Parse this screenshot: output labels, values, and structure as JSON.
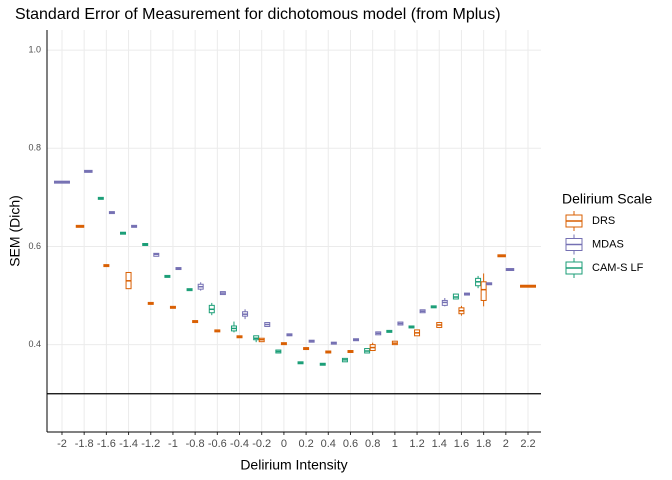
{
  "chart_data": {
    "type": "boxplot",
    "title": "Standard Error of Measurement for dichotomous model (from Mplus)",
    "x_label": "Delirium Intensity",
    "y_label": "SEM (Dich)",
    "legend_title": "Delirium Scale",
    "legend": "right",
    "grid": true,
    "xlim": [
      -2.135,
      2.317
    ],
    "ylim": [
      0.222,
      1.041
    ],
    "xticks": [
      -2,
      -1.8,
      -1.6,
      -1.4,
      -1.2,
      -1,
      -0.8,
      -0.6,
      -0.4,
      -0.2,
      0,
      0.2,
      0.4,
      0.6,
      0.8,
      1,
      1.2,
      1.4,
      1.6,
      1.8,
      2,
      2.2
    ],
    "yticks": [
      0.4,
      0.6,
      0.8,
      {
        "value": 1,
        "label": "1.0"
      }
    ],
    "hline": 0.3,
    "series": [
      {
        "name": "DRS",
        "color": "#d95f02",
        "boxes": [
          {
            "x": -1.8,
            "lo": 0.639,
            "q1": 0.639,
            "med": 0.641,
            "q3": 0.643,
            "hi": 0.643
          },
          {
            "x": -1.6,
            "lo": 0.559,
            "q1": 0.559,
            "med": 0.561,
            "q3": 0.563,
            "hi": 0.563
          },
          {
            "x": -1.4,
            "lo": 0.514,
            "q1": 0.514,
            "med": 0.53,
            "q3": 0.547,
            "hi": 0.547
          },
          {
            "x": -1.2,
            "lo": 0.482,
            "q1": 0.482,
            "med": 0.484,
            "q3": 0.486,
            "hi": 0.486
          },
          {
            "x": -1,
            "lo": 0.474,
            "q1": 0.474,
            "med": 0.476,
            "q3": 0.478,
            "hi": 0.478
          },
          {
            "x": -0.8,
            "lo": 0.445,
            "q1": 0.445,
            "med": 0.447,
            "q3": 0.449,
            "hi": 0.449
          },
          {
            "x": -0.6,
            "lo": 0.426,
            "q1": 0.426,
            "med": 0.428,
            "q3": 0.43,
            "hi": 0.43
          },
          {
            "x": -0.4,
            "lo": 0.414,
            "q1": 0.414,
            "med": 0.416,
            "q3": 0.418,
            "hi": 0.418
          },
          {
            "x": -0.2,
            "lo": 0.406,
            "q1": 0.406,
            "med": 0.41,
            "q3": 0.413,
            "hi": 0.413
          },
          {
            "x": 0,
            "lo": 0.4,
            "q1": 0.4,
            "med": 0.402,
            "q3": 0.404,
            "hi": 0.404
          },
          {
            "x": 0.2,
            "lo": 0.39,
            "q1": 0.39,
            "med": 0.392,
            "q3": 0.394,
            "hi": 0.394
          },
          {
            "x": 0.4,
            "lo": 0.383,
            "q1": 0.383,
            "med": 0.385,
            "q3": 0.387,
            "hi": 0.387
          },
          {
            "x": 0.6,
            "lo": 0.384,
            "q1": 0.384,
            "med": 0.386,
            "q3": 0.388,
            "hi": 0.388
          },
          {
            "x": 0.8,
            "lo": 0.388,
            "q1": 0.388,
            "med": 0.394,
            "q3": 0.4,
            "hi": 0.404
          },
          {
            "x": 1,
            "lo": 0.4,
            "q1": 0.4,
            "med": 0.403,
            "q3": 0.407,
            "hi": 0.407
          },
          {
            "x": 1.2,
            "lo": 0.418,
            "q1": 0.418,
            "med": 0.424,
            "q3": 0.43,
            "hi": 0.43
          },
          {
            "x": 1.4,
            "lo": 0.435,
            "q1": 0.435,
            "med": 0.44,
            "q3": 0.445,
            "hi": 0.445
          },
          {
            "x": 1.6,
            "lo": 0.459,
            "q1": 0.463,
            "med": 0.469,
            "q3": 0.475,
            "hi": 0.479
          },
          {
            "x": 1.8,
            "lo": 0.478,
            "q1": 0.49,
            "med": 0.512,
            "q3": 0.528,
            "hi": 0.545
          },
          {
            "x": 2,
            "lo": 0.579,
            "q1": 0.579,
            "med": 0.581,
            "q3": 0.583,
            "hi": 0.583
          },
          {
            "x": 2.2,
            "lo": 0.517,
            "q1": 0.517,
            "med": 0.519,
            "q3": 0.521,
            "hi": 0.521
          }
        ]
      },
      {
        "name": "MDAS",
        "color": "#7570b3",
        "boxes": [
          {
            "x": -2,
            "lo": 0.729,
            "q1": 0.729,
            "med": 0.731,
            "q3": 0.733,
            "hi": 0.733
          },
          {
            "x": -1.8,
            "lo": 0.751,
            "q1": 0.751,
            "med": 0.753,
            "q3": 0.755,
            "hi": 0.755
          },
          {
            "x": -1.6,
            "lo": 0.667,
            "q1": 0.667,
            "med": 0.669,
            "q3": 0.671,
            "hi": 0.671
          },
          {
            "x": -1.4,
            "lo": 0.639,
            "q1": 0.639,
            "med": 0.641,
            "q3": 0.643,
            "hi": 0.643
          },
          {
            "x": -1.2,
            "lo": 0.58,
            "q1": 0.58,
            "med": 0.584,
            "q3": 0.586,
            "hi": 0.586
          },
          {
            "x": -1,
            "lo": 0.553,
            "q1": 0.553,
            "med": 0.555,
            "q3": 0.557,
            "hi": 0.557
          },
          {
            "x": -0.8,
            "lo": 0.51,
            "q1": 0.513,
            "med": 0.518,
            "q3": 0.523,
            "hi": 0.527
          },
          {
            "x": -0.6,
            "lo": 0.502,
            "q1": 0.502,
            "med": 0.505,
            "q3": 0.508,
            "hi": 0.508
          },
          {
            "x": -0.4,
            "lo": 0.452,
            "q1": 0.458,
            "med": 0.462,
            "q3": 0.467,
            "hi": 0.472
          },
          {
            "x": -0.2,
            "lo": 0.437,
            "q1": 0.437,
            "med": 0.441,
            "q3": 0.445,
            "hi": 0.445
          },
          {
            "x": 0,
            "lo": 0.418,
            "q1": 0.418,
            "med": 0.42,
            "q3": 0.422,
            "hi": 0.422
          },
          {
            "x": 0.2,
            "lo": 0.405,
            "q1": 0.405,
            "med": 0.407,
            "q3": 0.409,
            "hi": 0.409
          },
          {
            "x": 0.4,
            "lo": 0.401,
            "q1": 0.401,
            "med": 0.403,
            "q3": 0.405,
            "hi": 0.405
          },
          {
            "x": 0.6,
            "lo": 0.408,
            "q1": 0.408,
            "med": 0.41,
            "q3": 0.412,
            "hi": 0.412
          },
          {
            "x": 0.8,
            "lo": 0.42,
            "q1": 0.42,
            "med": 0.423,
            "q3": 0.426,
            "hi": 0.426
          },
          {
            "x": 1,
            "lo": 0.44,
            "q1": 0.44,
            "med": 0.443,
            "q3": 0.446,
            "hi": 0.446
          },
          {
            "x": 1.2,
            "lo": 0.465,
            "q1": 0.465,
            "med": 0.468,
            "q3": 0.471,
            "hi": 0.471
          },
          {
            "x": 1.4,
            "lo": 0.478,
            "q1": 0.48,
            "med": 0.486,
            "q3": 0.49,
            "hi": 0.495
          },
          {
            "x": 1.6,
            "lo": 0.501,
            "q1": 0.501,
            "med": 0.503,
            "q3": 0.505,
            "hi": 0.505
          },
          {
            "x": 1.8,
            "lo": 0.522,
            "q1": 0.522,
            "med": 0.524,
            "q3": 0.526,
            "hi": 0.526
          },
          {
            "x": 2,
            "lo": 0.551,
            "q1": 0.551,
            "med": 0.553,
            "q3": 0.555,
            "hi": 0.555
          }
        ]
      },
      {
        "name": "CAM-S LF",
        "color": "#1b9e77",
        "boxes": [
          {
            "x": -1.6,
            "lo": 0.696,
            "q1": 0.696,
            "med": 0.698,
            "q3": 0.7,
            "hi": 0.7
          },
          {
            "x": -1.4,
            "lo": 0.625,
            "q1": 0.625,
            "med": 0.627,
            "q3": 0.629,
            "hi": 0.629
          },
          {
            "x": -1.2,
            "lo": 0.602,
            "q1": 0.602,
            "med": 0.604,
            "q3": 0.606,
            "hi": 0.606
          },
          {
            "x": -1,
            "lo": 0.537,
            "q1": 0.537,
            "med": 0.539,
            "q3": 0.541,
            "hi": 0.541
          },
          {
            "x": -0.8,
            "lo": 0.51,
            "q1": 0.51,
            "med": 0.512,
            "q3": 0.514,
            "hi": 0.514
          },
          {
            "x": -0.6,
            "lo": 0.46,
            "q1": 0.465,
            "med": 0.472,
            "q3": 0.48,
            "hi": 0.485
          },
          {
            "x": -0.4,
            "lo": 0.425,
            "q1": 0.428,
            "med": 0.433,
            "q3": 0.438,
            "hi": 0.447
          },
          {
            "x": -0.2,
            "lo": 0.405,
            "q1": 0.41,
            "med": 0.413,
            "q3": 0.418,
            "hi": 0.418
          },
          {
            "x": 0,
            "lo": 0.383,
            "q1": 0.383,
            "med": 0.386,
            "q3": 0.389,
            "hi": 0.389
          },
          {
            "x": 0.2,
            "lo": 0.361,
            "q1": 0.361,
            "med": 0.363,
            "q3": 0.365,
            "hi": 0.365
          },
          {
            "x": 0.4,
            "lo": 0.358,
            "q1": 0.358,
            "med": 0.36,
            "q3": 0.362,
            "hi": 0.362
          },
          {
            "x": 0.6,
            "lo": 0.365,
            "q1": 0.365,
            "med": 0.369,
            "q3": 0.372,
            "hi": 0.372
          },
          {
            "x": 0.8,
            "lo": 0.383,
            "q1": 0.383,
            "med": 0.387,
            "q3": 0.392,
            "hi": 0.392
          },
          {
            "x": 1,
            "lo": 0.425,
            "q1": 0.425,
            "med": 0.427,
            "q3": 0.429,
            "hi": 0.429
          },
          {
            "x": 1.2,
            "lo": 0.434,
            "q1": 0.434,
            "med": 0.436,
            "q3": 0.438,
            "hi": 0.438
          },
          {
            "x": 1.4,
            "lo": 0.475,
            "q1": 0.475,
            "med": 0.477,
            "q3": 0.479,
            "hi": 0.479
          },
          {
            "x": 1.6,
            "lo": 0.493,
            "q1": 0.493,
            "med": 0.497,
            "q3": 0.503,
            "hi": 0.503
          },
          {
            "x": 1.8,
            "lo": 0.515,
            "q1": 0.52,
            "med": 0.528,
            "q3": 0.535,
            "hi": 0.54
          }
        ]
      }
    ]
  }
}
